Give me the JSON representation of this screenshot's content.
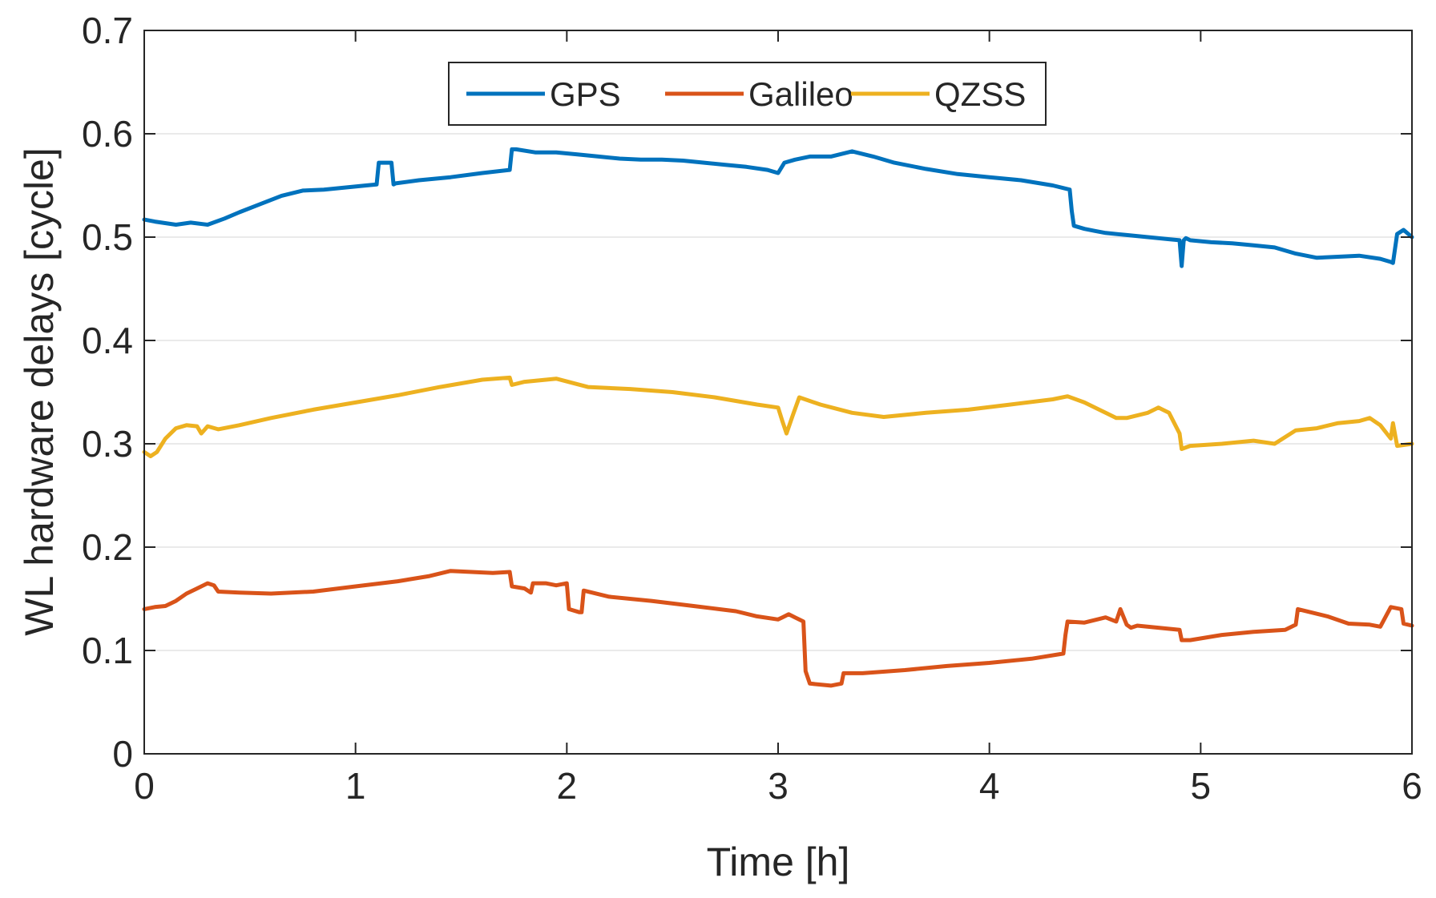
{
  "chart_data": {
    "type": "line",
    "xlabel": "Time [h]",
    "ylabel": "WL hardware delays [cycle]",
    "xlim": [
      0,
      6
    ],
    "ylim": [
      0,
      0.7
    ],
    "xticks": [
      "0",
      "1",
      "2",
      "3",
      "4",
      "5",
      "6"
    ],
    "yticks": [
      "0",
      "0.1",
      "0.2",
      "0.3",
      "0.4",
      "0.5",
      "0.6",
      "0.7"
    ],
    "grid": "y",
    "legend": {
      "placement": "top-left inside",
      "orientation": "horizontal"
    },
    "series": [
      {
        "name": "GPS",
        "color": "#0072BD",
        "x": [
          0,
          0.05,
          0.15,
          0.22,
          0.3,
          0.38,
          0.45,
          0.55,
          0.65,
          0.75,
          0.85,
          0.95,
          1.05,
          1.1,
          1.11,
          1.12,
          1.17,
          1.18,
          1.19,
          1.3,
          1.45,
          1.6,
          1.73,
          1.74,
          1.76,
          1.85,
          1.95,
          2.05,
          2.15,
          2.25,
          2.35,
          2.45,
          2.55,
          2.65,
          2.75,
          2.85,
          2.95,
          3.0,
          3.03,
          3.08,
          3.15,
          3.25,
          3.35,
          3.45,
          3.55,
          3.7,
          3.85,
          4.0,
          4.15,
          4.3,
          4.38,
          4.39,
          4.4,
          4.45,
          4.5,
          4.55,
          4.65,
          4.75,
          4.85,
          4.9,
          4.91,
          4.92,
          4.93,
          4.95,
          5.05,
          5.15,
          5.25,
          5.35,
          5.45,
          5.55,
          5.65,
          5.75,
          5.85,
          5.9,
          5.91,
          5.93,
          5.96,
          6.0
        ],
        "values": [
          0.517,
          0.515,
          0.512,
          0.514,
          0.512,
          0.518,
          0.524,
          0.532,
          0.54,
          0.545,
          0.546,
          0.548,
          0.55,
          0.551,
          0.572,
          0.572,
          0.572,
          0.551,
          0.552,
          0.555,
          0.558,
          0.562,
          0.565,
          0.585,
          0.585,
          0.582,
          0.582,
          0.58,
          0.578,
          0.576,
          0.575,
          0.575,
          0.574,
          0.572,
          0.57,
          0.568,
          0.565,
          0.562,
          0.572,
          0.575,
          0.578,
          0.578,
          0.583,
          0.578,
          0.572,
          0.566,
          0.561,
          0.558,
          0.555,
          0.55,
          0.546,
          0.525,
          0.511,
          0.508,
          0.506,
          0.504,
          0.502,
          0.5,
          0.498,
          0.497,
          0.472,
          0.497,
          0.499,
          0.497,
          0.495,
          0.494,
          0.492,
          0.49,
          0.484,
          0.48,
          0.481,
          0.482,
          0.479,
          0.476,
          0.475,
          0.503,
          0.507,
          0.5
        ]
      },
      {
        "name": "Galileo",
        "color": "#D95319",
        "x": [
          0,
          0.05,
          0.1,
          0.15,
          0.2,
          0.25,
          0.3,
          0.33,
          0.35,
          0.45,
          0.6,
          0.8,
          1.0,
          1.2,
          1.35,
          1.45,
          1.55,
          1.65,
          1.73,
          1.74,
          1.8,
          1.83,
          1.84,
          1.9,
          1.95,
          2.0,
          2.01,
          2.06,
          2.07,
          2.08,
          2.2,
          2.4,
          2.6,
          2.8,
          2.9,
          3.0,
          3.02,
          3.05,
          3.08,
          3.12,
          3.13,
          3.15,
          3.25,
          3.3,
          3.31,
          3.4,
          3.6,
          3.8,
          4.0,
          4.2,
          4.35,
          4.36,
          4.37,
          4.45,
          4.55,
          4.6,
          4.62,
          4.65,
          4.67,
          4.7,
          4.8,
          4.9,
          4.91,
          4.95,
          5.1,
          5.25,
          5.4,
          5.45,
          5.46,
          5.6,
          5.7,
          5.8,
          5.85,
          5.9,
          5.95,
          5.96,
          6.0
        ],
        "values": [
          0.14,
          0.142,
          0.143,
          0.148,
          0.155,
          0.16,
          0.165,
          0.163,
          0.157,
          0.156,
          0.155,
          0.157,
          0.162,
          0.167,
          0.172,
          0.177,
          0.176,
          0.175,
          0.176,
          0.162,
          0.16,
          0.156,
          0.165,
          0.165,
          0.163,
          0.165,
          0.14,
          0.137,
          0.137,
          0.158,
          0.152,
          0.148,
          0.143,
          0.138,
          0.133,
          0.13,
          0.132,
          0.135,
          0.132,
          0.128,
          0.08,
          0.068,
          0.066,
          0.068,
          0.078,
          0.078,
          0.081,
          0.085,
          0.088,
          0.092,
          0.097,
          0.115,
          0.128,
          0.127,
          0.132,
          0.128,
          0.14,
          0.125,
          0.122,
          0.124,
          0.122,
          0.12,
          0.11,
          0.11,
          0.115,
          0.118,
          0.12,
          0.125,
          0.14,
          0.133,
          0.126,
          0.125,
          0.123,
          0.142,
          0.14,
          0.126,
          0.124
        ]
      },
      {
        "name": "QZSS",
        "color": "#EDB120",
        "x": [
          0,
          0.03,
          0.06,
          0.1,
          0.15,
          0.2,
          0.25,
          0.27,
          0.3,
          0.35,
          0.45,
          0.6,
          0.8,
          1.0,
          1.2,
          1.4,
          1.6,
          1.73,
          1.74,
          1.8,
          1.95,
          2.1,
          2.3,
          2.5,
          2.7,
          2.9,
          3.0,
          3.02,
          3.04,
          3.07,
          3.1,
          3.2,
          3.35,
          3.5,
          3.7,
          3.9,
          4.1,
          4.3,
          4.37,
          4.45,
          4.55,
          4.6,
          4.65,
          4.75,
          4.8,
          4.85,
          4.88,
          4.9,
          4.91,
          4.95,
          5.1,
          5.25,
          5.35,
          5.45,
          5.55,
          5.65,
          5.75,
          5.8,
          5.85,
          5.9,
          5.91,
          5.93,
          6.0
        ],
        "values": [
          0.292,
          0.288,
          0.292,
          0.305,
          0.315,
          0.318,
          0.317,
          0.31,
          0.317,
          0.314,
          0.318,
          0.325,
          0.333,
          0.34,
          0.347,
          0.355,
          0.362,
          0.364,
          0.357,
          0.36,
          0.363,
          0.355,
          0.353,
          0.35,
          0.345,
          0.338,
          0.335,
          0.322,
          0.31,
          0.328,
          0.345,
          0.338,
          0.33,
          0.326,
          0.33,
          0.333,
          0.338,
          0.343,
          0.346,
          0.34,
          0.33,
          0.325,
          0.325,
          0.33,
          0.335,
          0.33,
          0.318,
          0.31,
          0.295,
          0.298,
          0.3,
          0.303,
          0.3,
          0.313,
          0.315,
          0.32,
          0.322,
          0.325,
          0.318,
          0.305,
          0.32,
          0.298,
          0.3
        ]
      }
    ]
  }
}
